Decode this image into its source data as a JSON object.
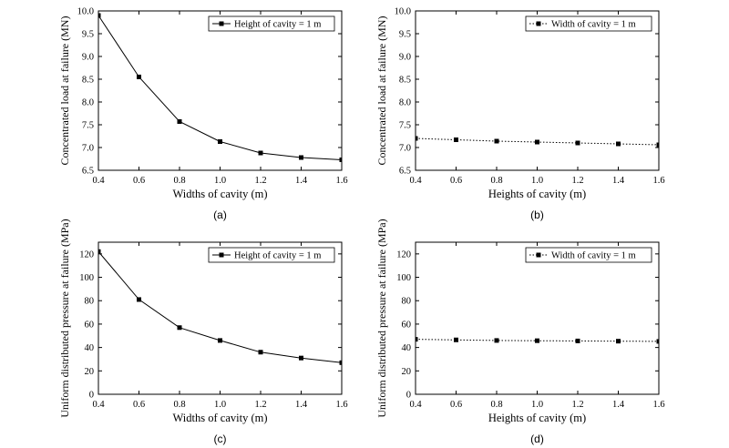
{
  "chart_data": [
    {
      "type": "line",
      "panel_label": "(a)",
      "xlabel": "Widths of cavity (m)",
      "ylabel": "Concentrated load at failure (MN)",
      "xlim": [
        0.4,
        1.6
      ],
      "ylim": [
        6.5,
        10.0
      ],
      "x_ticks": [
        "0.4",
        "0.6",
        "0.8",
        "1.0",
        "1.2",
        "1.4",
        "1.6"
      ],
      "y_ticks": [
        "6.5",
        "7.0",
        "7.5",
        "8.0",
        "8.5",
        "9.0",
        "9.5",
        "10.0"
      ],
      "legend_position": "top-right",
      "line_style": "solid",
      "series": [
        {
          "name": "Height of cavity = 1 m",
          "x": [
            0.4,
            0.6,
            0.8,
            1.0,
            1.2,
            1.4,
            1.6
          ],
          "values": [
            9.9,
            8.55,
            7.57,
            7.13,
            6.88,
            6.78,
            6.73
          ]
        }
      ]
    },
    {
      "type": "line",
      "panel_label": "(b)",
      "xlabel": "Heights of cavity (m)",
      "ylabel": "Concentrated load at failure (MN)",
      "xlim": [
        0.4,
        1.6
      ],
      "ylim": [
        6.5,
        10.0
      ],
      "x_ticks": [
        "0.4",
        "0.6",
        "0.8",
        "1.0",
        "1.2",
        "1.4",
        "1.6"
      ],
      "y_ticks": [
        "6.5",
        "7.0",
        "7.5",
        "8.0",
        "8.5",
        "9.0",
        "9.5",
        "10.0"
      ],
      "legend_position": "top-right",
      "line_style": "dotted",
      "series": [
        {
          "name": "Width of cavity = 1 m",
          "x": [
            0.4,
            0.6,
            0.8,
            1.0,
            1.2,
            1.4,
            1.6
          ],
          "values": [
            7.2,
            7.17,
            7.14,
            7.12,
            7.1,
            7.08,
            7.06
          ]
        }
      ]
    },
    {
      "type": "line",
      "panel_label": "(c)",
      "xlabel": "Widths of cavity (m)",
      "ylabel": "Uniform distributed pressure at failure (MPa)",
      "xlim": [
        0.4,
        1.6
      ],
      "ylim": [
        0,
        130
      ],
      "x_ticks": [
        "0.4",
        "0.6",
        "0.8",
        "1.0",
        "1.2",
        "1.4",
        "1.6"
      ],
      "y_ticks": [
        "0",
        "20",
        "40",
        "60",
        "80",
        "100",
        "120"
      ],
      "legend_position": "top-right",
      "line_style": "solid",
      "series": [
        {
          "name": "Height of cavity = 1 m",
          "x": [
            0.4,
            0.6,
            0.8,
            1.0,
            1.2,
            1.4,
            1.6
          ],
          "values": [
            122,
            81,
            57,
            46,
            36,
            31,
            27
          ]
        }
      ]
    },
    {
      "type": "line",
      "panel_label": "(d)",
      "xlabel": "Heights of cavity (m)",
      "ylabel": "Uniform distributed pressure at failure (MPa)",
      "xlim": [
        0.4,
        1.6
      ],
      "ylim": [
        0,
        130
      ],
      "x_ticks": [
        "0.4",
        "0.6",
        "0.8",
        "1.0",
        "1.2",
        "1.4",
        "1.6"
      ],
      "y_ticks": [
        "0",
        "20",
        "40",
        "60",
        "80",
        "100",
        "120"
      ],
      "legend_position": "top-right",
      "line_style": "dotted",
      "series": [
        {
          "name": "Width of cavity = 1 m",
          "x": [
            0.4,
            0.6,
            0.8,
            1.0,
            1.2,
            1.4,
            1.6
          ],
          "values": [
            47,
            46.5,
            46,
            45.8,
            45.6,
            45.4,
            45.2
          ]
        }
      ]
    }
  ]
}
